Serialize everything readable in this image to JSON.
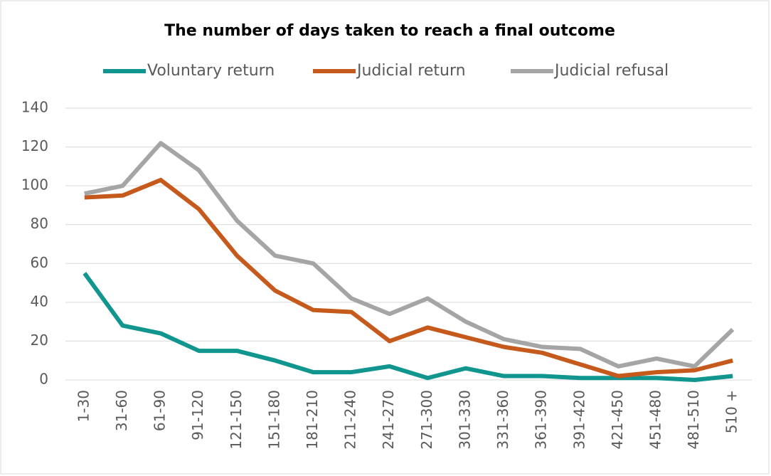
{
  "chart_data": {
    "type": "line",
    "title": "The number of days taken to reach a final outcome",
    "categories": [
      "1-30",
      "31-60",
      "61-90",
      "91-120",
      "121-150",
      "151-180",
      "181-210",
      "211-240",
      "241-270",
      "271-300",
      "301-330",
      "331-360",
      "361-390",
      "391-420",
      "421-450",
      "451-480",
      "481-510",
      "510 +"
    ],
    "series": [
      {
        "name": "Voluntary return",
        "color": "#11968f",
        "values": [
          55,
          28,
          24,
          15,
          15,
          10,
          4,
          4,
          7,
          1,
          6,
          2,
          2,
          1,
          1,
          1,
          0,
          2
        ]
      },
      {
        "name": "Judicial return",
        "color": "#c55a1c",
        "values": [
          94,
          95,
          103,
          88,
          64,
          46,
          36,
          35,
          20,
          27,
          22,
          17,
          14,
          8,
          2,
          4,
          5,
          10
        ]
      },
      {
        "name": "Judicial refusal",
        "color": "#a5a5a5",
        "values": [
          96,
          100,
          122,
          108,
          82,
          64,
          60,
          42,
          34,
          42,
          30,
          21,
          17,
          16,
          7,
          11,
          7,
          26
        ]
      }
    ],
    "ylim": [
      0,
      140
    ],
    "yticks": [
      0,
      20,
      40,
      60,
      80,
      100,
      120,
      140
    ],
    "grid": true,
    "legend": "top"
  }
}
